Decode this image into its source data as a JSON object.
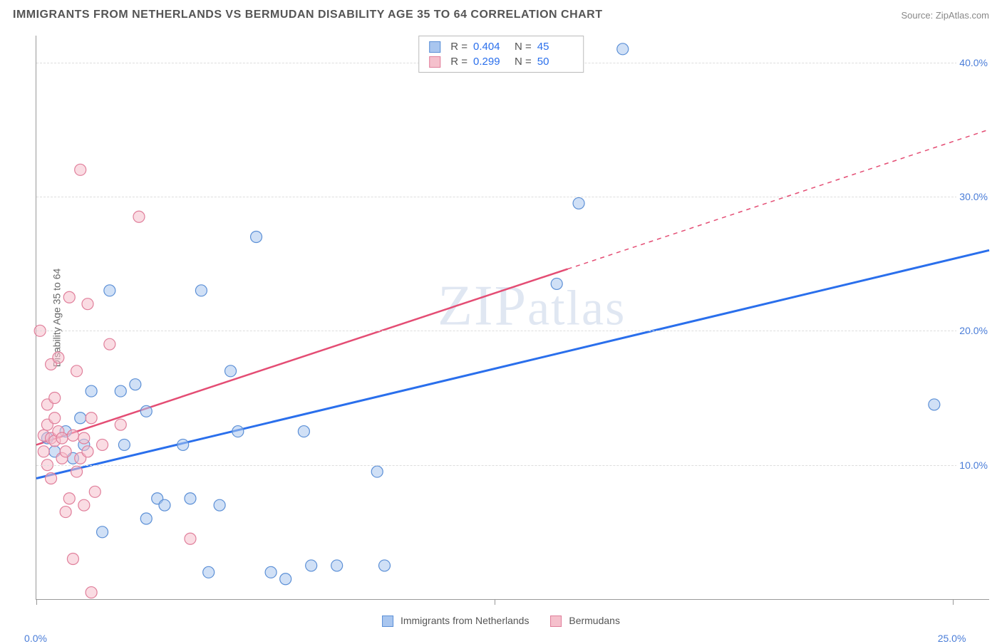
{
  "title": "IMMIGRANTS FROM NETHERLANDS VS BERMUDAN DISABILITY AGE 35 TO 64 CORRELATION CHART",
  "source_label": "Source: ZipAtlas.com",
  "y_axis_label": "Disability Age 35 to 64",
  "watermark": "ZIPatlas",
  "chart": {
    "type": "scatter",
    "background_color": "#ffffff",
    "grid_color": "#dddddd",
    "axis_color": "#999999",
    "tick_label_color": "#4a7dd8",
    "xlim": [
      0,
      26
    ],
    "ylim": [
      0,
      42
    ],
    "x_ticks": [
      0,
      12.5,
      25
    ],
    "x_tick_labels": [
      "0.0%",
      "",
      "25.0%"
    ],
    "y_ticks": [
      10,
      20,
      30,
      40
    ],
    "y_tick_labels": [
      "10.0%",
      "20.0%",
      "30.0%",
      "40.0%"
    ],
    "marker_radius": 8,
    "marker_opacity": 0.55,
    "marker_stroke_width": 1.2
  },
  "series": [
    {
      "id": "netherlands",
      "label": "Immigrants from Netherlands",
      "fill_color": "#a9c6ef",
      "stroke_color": "#5b8fd6",
      "line_color": "#2a6fec",
      "line_width": 3,
      "R": "0.404",
      "N": "45",
      "trend": {
        "x1": 0,
        "y1": 9.0,
        "x2": 26,
        "y2": 26.0,
        "solid_until_x": 26
      },
      "points": [
        [
          0.3,
          12.0
        ],
        [
          0.5,
          11.0
        ],
        [
          0.8,
          12.5
        ],
        [
          1.0,
          10.5
        ],
        [
          1.2,
          13.5
        ],
        [
          1.3,
          11.5
        ],
        [
          1.5,
          15.5
        ],
        [
          1.8,
          5.0
        ],
        [
          2.0,
          23.0
        ],
        [
          2.3,
          15.5
        ],
        [
          2.4,
          11.5
        ],
        [
          2.7,
          16.0
        ],
        [
          3.0,
          14.0
        ],
        [
          3.0,
          6.0
        ],
        [
          3.3,
          7.5
        ],
        [
          3.5,
          7.0
        ],
        [
          4.0,
          11.5
        ],
        [
          4.2,
          7.5
        ],
        [
          4.5,
          23.0
        ],
        [
          4.7,
          2.0
        ],
        [
          5.0,
          7.0
        ],
        [
          5.3,
          17.0
        ],
        [
          5.5,
          12.5
        ],
        [
          6.0,
          27.0
        ],
        [
          6.4,
          2.0
        ],
        [
          6.8,
          1.5
        ],
        [
          7.3,
          12.5
        ],
        [
          7.5,
          2.5
        ],
        [
          8.2,
          2.5
        ],
        [
          9.3,
          9.5
        ],
        [
          9.5,
          2.5
        ],
        [
          14.2,
          23.5
        ],
        [
          14.8,
          29.5
        ],
        [
          16.0,
          41.0
        ],
        [
          24.5,
          14.5
        ]
      ]
    },
    {
      "id": "bermudans",
      "label": "Bermudans",
      "fill_color": "#f5c0cc",
      "stroke_color": "#e07f9b",
      "line_color": "#e44d74",
      "line_width": 2.5,
      "R": "0.299",
      "N": "50",
      "trend": {
        "x1": 0,
        "y1": 11.5,
        "x2": 26,
        "y2": 35.0,
        "solid_until_x": 14.5
      },
      "points": [
        [
          0.1,
          20.0
        ],
        [
          0.2,
          12.2
        ],
        [
          0.2,
          11.0
        ],
        [
          0.3,
          13.0
        ],
        [
          0.3,
          14.5
        ],
        [
          0.3,
          10.0
        ],
        [
          0.4,
          12.0
        ],
        [
          0.4,
          17.5
        ],
        [
          0.4,
          9.0
        ],
        [
          0.5,
          11.8
        ],
        [
          0.5,
          13.5
        ],
        [
          0.5,
          15.0
        ],
        [
          0.6,
          12.5
        ],
        [
          0.6,
          18.0
        ],
        [
          0.7,
          10.5
        ],
        [
          0.7,
          12.0
        ],
        [
          0.8,
          6.5
        ],
        [
          0.8,
          11.0
        ],
        [
          0.9,
          22.5
        ],
        [
          0.9,
          7.5
        ],
        [
          1.0,
          12.2
        ],
        [
          1.0,
          3.0
        ],
        [
          1.1,
          17.0
        ],
        [
          1.1,
          9.5
        ],
        [
          1.2,
          32.0
        ],
        [
          1.2,
          10.5
        ],
        [
          1.3,
          7.0
        ],
        [
          1.3,
          12.0
        ],
        [
          1.4,
          22.0
        ],
        [
          1.4,
          11.0
        ],
        [
          1.5,
          13.5
        ],
        [
          1.5,
          0.5
        ],
        [
          1.6,
          8.0
        ],
        [
          1.8,
          11.5
        ],
        [
          2.0,
          19.0
        ],
        [
          2.3,
          13.0
        ],
        [
          2.8,
          28.5
        ],
        [
          4.2,
          4.5
        ]
      ]
    }
  ],
  "stats_box": {
    "r_label": "R =",
    "n_label": "N ="
  },
  "bottom_legend": {
    "items": [
      {
        "label_path": "series.0.label",
        "fill_path": "series.0.fill_color",
        "stroke_path": "series.0.stroke_color"
      },
      {
        "label_path": "series.1.label",
        "fill_path": "series.1.fill_color",
        "stroke_path": "series.1.stroke_color"
      }
    ]
  }
}
